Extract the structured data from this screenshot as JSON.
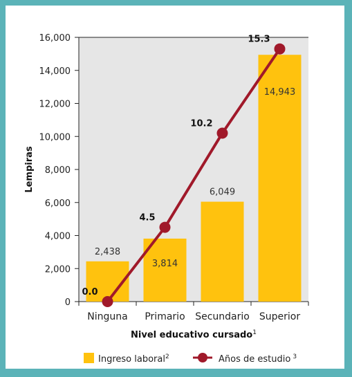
{
  "chart_data": {
    "type": "bar",
    "categories": [
      "Ninguna",
      "Primario",
      "Secundario",
      "Superior"
    ],
    "y_ticks": [
      "0",
      "2,000",
      "4,000",
      "6,000",
      "8,000",
      "10,000",
      "12,000",
      "14,000",
      "16,000"
    ],
    "ylim": [
      0,
      16000
    ],
    "ylabel": "Lempiras",
    "xlabel": "Nivel educativo cursado",
    "xlabel_sup": "1",
    "series": [
      {
        "name": "Ingreso laboral",
        "name_sup": "2",
        "type": "bar",
        "color": "#ffc20e",
        "values": [
          2438,
          3814,
          6049,
          14943
        ],
        "labels": [
          "2,438",
          "3,814",
          "6,049",
          "14,943"
        ]
      },
      {
        "name": "Años de estudio",
        "name_sup": "3",
        "type": "line",
        "color": "#a0192a",
        "axis": "secondary",
        "values": [
          0.0,
          4.5,
          10.2,
          15.3
        ],
        "labels": [
          "0.0",
          "4.5",
          "10.2",
          "15.3"
        ]
      }
    ],
    "secondary_scale_max": 16,
    "grid": false,
    "legend_position": "bottom"
  }
}
